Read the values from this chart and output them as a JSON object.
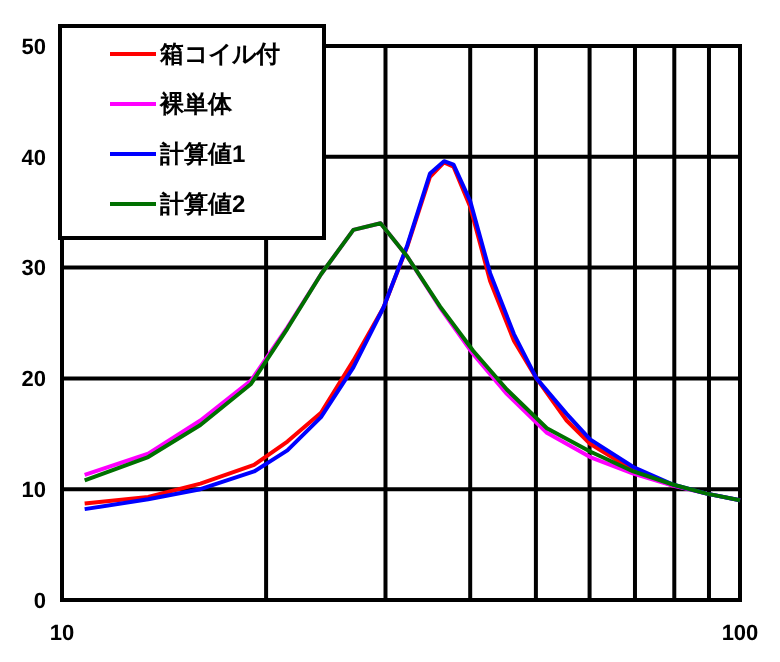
{
  "chart_data": {
    "type": "line",
    "log": "x",
    "grid": true,
    "legend": "top left",
    "line_style": "solid",
    "marker": "none",
    "xlim": [
      10,
      100
    ],
    "xticks": [
      10,
      {
        "value": 20,
        "label": null
      },
      {
        "value": 30,
        "label": null
      },
      {
        "value": 40,
        "label": null
      },
      {
        "value": 50,
        "label": null
      },
      {
        "value": 60,
        "label": null
      },
      {
        "value": 70,
        "label": null
      },
      {
        "value": 80,
        "label": null
      },
      {
        "value": 90,
        "label": null
      },
      100
    ],
    "ylim": [
      0,
      50
    ],
    "yticks": [
      0,
      10,
      20,
      30,
      40,
      50
    ],
    "series": [
      {
        "name": "箱コイル付",
        "color": "#ff0000",
        "x": [
          10.8,
          13.4,
          16.0,
          19.2,
          21.5,
          24.1,
          26.9,
          29.8,
          32.3,
          34.9,
          36.6,
          37.8,
          40.0,
          42.8,
          46.4,
          50.1,
          55.5,
          60.1,
          69.6,
          79.8
        ],
        "values": [
          8.7,
          9.3,
          10.5,
          12.2,
          14.3,
          16.9,
          21.6,
          26.4,
          31.9,
          38.2,
          39.5,
          39.1,
          35.5,
          28.8,
          23.4,
          20.0,
          16.2,
          14.1,
          11.7,
          10.3
        ]
      },
      {
        "name": "裸単体",
        "color": "#ff00ff",
        "x": [
          10.8,
          13.4,
          16.0,
          19.0,
          21.5,
          24.1,
          26.9,
          29.5,
          32.3,
          36.1,
          40.4,
          45.3,
          51.9,
          60.1,
          69.6,
          79.8,
          89.3,
          100
        ],
        "values": [
          11.3,
          13.2,
          16.2,
          19.8,
          24.6,
          29.4,
          33.4,
          34.0,
          31.0,
          26.4,
          22.2,
          18.6,
          15.1,
          12.9,
          11.4,
          10.3,
          9.6,
          9.0
        ]
      },
      {
        "name": "計算値1",
        "color": "#0000ff",
        "x": [
          10.8,
          13.4,
          16.0,
          19.2,
          21.5,
          24.1,
          26.9,
          29.8,
          32.3,
          34.9,
          36.6,
          37.8,
          40.0,
          42.8,
          46.4,
          50.1,
          55.5,
          60.1,
          69.6,
          79.8,
          89.3,
          100
        ],
        "values": [
          8.2,
          9.1,
          10.0,
          11.6,
          13.5,
          16.5,
          21.0,
          26.4,
          32.0,
          38.5,
          39.6,
          39.3,
          36.0,
          29.5,
          24.0,
          20.0,
          16.8,
          14.5,
          12.0,
          10.4,
          9.6,
          9.0
        ]
      },
      {
        "name": "計算値2",
        "color": "#007000",
        "x": [
          10.8,
          13.4,
          16.0,
          19.0,
          21.5,
          24.1,
          26.9,
          29.5,
          32.3,
          36.1,
          40.4,
          45.3,
          51.9,
          60.1,
          69.6,
          79.8,
          89.3,
          100
        ],
        "values": [
          10.8,
          12.9,
          15.8,
          19.5,
          24.5,
          29.4,
          33.4,
          34.0,
          31.0,
          26.5,
          22.5,
          19.0,
          15.5,
          13.4,
          11.6,
          10.4,
          9.6,
          9.0
        ]
      }
    ]
  }
}
